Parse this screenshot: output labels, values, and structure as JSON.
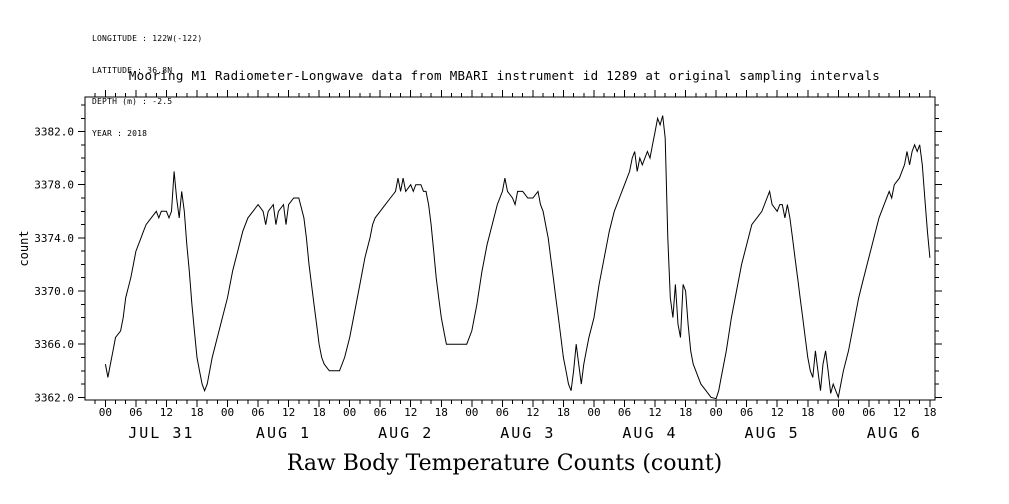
{
  "header": {
    "lines": [
      "LONGITUDE : 122W(-122)",
      "LATITUDE : 36.8N",
      "DEPTH (m) : -2.5",
      "YEAR : 2018"
    ]
  },
  "chart_data": {
    "type": "line",
    "title": "Mooring M1 Radiometer-Longwave data from MBARI instrument id 1289 at original sampling intervals",
    "xlabel": "Raw Body Temperature Counts (count)",
    "ylabel": "count",
    "line_color": "#000000",
    "ylim": [
      3361.8,
      3384.6
    ],
    "yticks": [
      3362.0,
      3366.0,
      3370.0,
      3374.0,
      3378.0,
      3382.0
    ],
    "y_minor_step": 1,
    "xlim_hours": [
      -4,
      163
    ],
    "x_major_step_hours": 6,
    "x_minor_step_hours": 2,
    "hour_tick_labels": [
      "00",
      "06",
      "12",
      "18"
    ],
    "day_labels": [
      "JUL 31",
      "AUG 1",
      "AUG 2",
      "AUG 3",
      "AUG 4",
      "AUG 5",
      "AUG 6"
    ],
    "points": [
      [
        0,
        3364.5
      ],
      [
        0.5,
        3363.5
      ],
      [
        1,
        3364.5
      ],
      [
        1.5,
        3365.5
      ],
      [
        2,
        3366.5
      ],
      [
        3,
        3367
      ],
      [
        3.5,
        3368
      ],
      [
        4,
        3369.5
      ],
      [
        5,
        3371
      ],
      [
        5.5,
        3372
      ],
      [
        6,
        3373
      ],
      [
        7,
        3374
      ],
      [
        7.5,
        3374.5
      ],
      [
        8,
        3375
      ],
      [
        9,
        3375.5
      ],
      [
        10,
        3376
      ],
      [
        10.5,
        3375.5
      ],
      [
        11,
        3376
      ],
      [
        12,
        3376
      ],
      [
        12.5,
        3375.5
      ],
      [
        13,
        3376
      ],
      [
        13.5,
        3379
      ],
      [
        14,
        3377
      ],
      [
        14.5,
        3375.5
      ],
      [
        15,
        3377.5
      ],
      [
        15.5,
        3376
      ],
      [
        16,
        3373.5
      ],
      [
        16.5,
        3371.5
      ],
      [
        17,
        3369
      ],
      [
        17.5,
        3367
      ],
      [
        18,
        3365
      ],
      [
        18.5,
        3364
      ],
      [
        19,
        3363
      ],
      [
        19.5,
        3362.5
      ],
      [
        20,
        3363
      ],
      [
        20.5,
        3364
      ],
      [
        21,
        3365
      ],
      [
        22,
        3366.5
      ],
      [
        23,
        3368
      ],
      [
        24,
        3369.5
      ],
      [
        25,
        3371.5
      ],
      [
        26,
        3373
      ],
      [
        27,
        3374.5
      ],
      [
        28,
        3375.5
      ],
      [
        29,
        3376
      ],
      [
        30,
        3376.5
      ],
      [
        31,
        3376
      ],
      [
        31.5,
        3375
      ],
      [
        32,
        3376
      ],
      [
        33,
        3376.5
      ],
      [
        33.5,
        3375
      ],
      [
        34,
        3376
      ],
      [
        35,
        3376.5
      ],
      [
        35.5,
        3375
      ],
      [
        36,
        3376.5
      ],
      [
        37,
        3377
      ],
      [
        38,
        3377
      ],
      [
        39,
        3375.5
      ],
      [
        39.5,
        3374
      ],
      [
        40,
        3372
      ],
      [
        40.5,
        3370.5
      ],
      [
        41,
        3369
      ],
      [
        41.5,
        3367.5
      ],
      [
        42,
        3366
      ],
      [
        42.5,
        3365
      ],
      [
        43,
        3364.5
      ],
      [
        44,
        3364
      ],
      [
        45,
        3364
      ],
      [
        46,
        3364
      ],
      [
        47,
        3365
      ],
      [
        48,
        3366.5
      ],
      [
        49,
        3368.5
      ],
      [
        50,
        3370.5
      ],
      [
        51,
        3372.5
      ],
      [
        52,
        3374
      ],
      [
        52.5,
        3375
      ],
      [
        53,
        3375.5
      ],
      [
        54,
        3376
      ],
      [
        55,
        3376.5
      ],
      [
        56,
        3377
      ],
      [
        57,
        3377.5
      ],
      [
        57.5,
        3378.5
      ],
      [
        58,
        3377.5
      ],
      [
        58.5,
        3378.5
      ],
      [
        59,
        3377.5
      ],
      [
        60,
        3378
      ],
      [
        60.5,
        3377.5
      ],
      [
        61,
        3378
      ],
      [
        62,
        3378
      ],
      [
        62.5,
        3377.5
      ],
      [
        63,
        3377.5
      ],
      [
        63.5,
        3376.5
      ],
      [
        64,
        3375
      ],
      [
        64.5,
        3373
      ],
      [
        65,
        3371
      ],
      [
        65.5,
        3369.5
      ],
      [
        66,
        3368
      ],
      [
        66.5,
        3367
      ],
      [
        67,
        3366
      ],
      [
        68,
        3366
      ],
      [
        69,
        3366
      ],
      [
        70,
        3366
      ],
      [
        71,
        3366
      ],
      [
        72,
        3367
      ],
      [
        73,
        3369
      ],
      [
        74,
        3371.5
      ],
      [
        75,
        3373.5
      ],
      [
        76,
        3375
      ],
      [
        77,
        3376.5
      ],
      [
        78,
        3377.5
      ],
      [
        78.5,
        3378.5
      ],
      [
        79,
        3377.5
      ],
      [
        80,
        3377
      ],
      [
        80.5,
        3376.5
      ],
      [
        81,
        3377.5
      ],
      [
        82,
        3377.5
      ],
      [
        83,
        3377
      ],
      [
        84,
        3377
      ],
      [
        85,
        3377.5
      ],
      [
        85.5,
        3376.5
      ],
      [
        86,
        3376
      ],
      [
        86.5,
        3375
      ],
      [
        87,
        3374
      ],
      [
        87.5,
        3372.5
      ],
      [
        88,
        3371
      ],
      [
        88.5,
        3369.5
      ],
      [
        89,
        3368
      ],
      [
        89.5,
        3366.5
      ],
      [
        90,
        3365
      ],
      [
        90.5,
        3364
      ],
      [
        91,
        3363
      ],
      [
        91.5,
        3362.5
      ],
      [
        92,
        3364
      ],
      [
        92.5,
        3366
      ],
      [
        93,
        3364.5
      ],
      [
        93.5,
        3363
      ],
      [
        94,
        3364.5
      ],
      [
        94.5,
        3365.5
      ],
      [
        95,
        3366.5
      ],
      [
        96,
        3368
      ],
      [
        97,
        3370.5
      ],
      [
        98,
        3372.5
      ],
      [
        99,
        3374.5
      ],
      [
        100,
        3376
      ],
      [
        101,
        3377
      ],
      [
        102,
        3378
      ],
      [
        103,
        3379
      ],
      [
        103.5,
        3380
      ],
      [
        104,
        3380.5
      ],
      [
        104.5,
        3379
      ],
      [
        105,
        3380
      ],
      [
        105.5,
        3379.5
      ],
      [
        106,
        3380
      ],
      [
        106.5,
        3380.5
      ],
      [
        107,
        3380
      ],
      [
        107.5,
        3381
      ],
      [
        108,
        3382
      ],
      [
        108.5,
        3383
      ],
      [
        109,
        3382.5
      ],
      [
        109.5,
        3383.2
      ],
      [
        110,
        3381.5
      ],
      [
        110.5,
        3374
      ],
      [
        111,
        3369.5
      ],
      [
        111.5,
        3368
      ],
      [
        112,
        3370.5
      ],
      [
        112.5,
        3367.5
      ],
      [
        113,
        3366.5
      ],
      [
        113.5,
        3370.5
      ],
      [
        114,
        3370
      ],
      [
        114.5,
        3367.5
      ],
      [
        115,
        3365.5
      ],
      [
        115.5,
        3364.5
      ],
      [
        116,
        3364
      ],
      [
        116.5,
        3363.5
      ],
      [
        117,
        3363
      ],
      [
        118,
        3362.5
      ],
      [
        119,
        3362
      ],
      [
        120,
        3361.9
      ],
      [
        120.5,
        3362.5
      ],
      [
        121,
        3363.5
      ],
      [
        122,
        3365.5
      ],
      [
        123,
        3368
      ],
      [
        124,
        3370
      ],
      [
        125,
        3372
      ],
      [
        126,
        3373.5
      ],
      [
        127,
        3375
      ],
      [
        128,
        3375.5
      ],
      [
        129,
        3376
      ],
      [
        130,
        3377
      ],
      [
        130.5,
        3377.5
      ],
      [
        131,
        3376.5
      ],
      [
        132,
        3376
      ],
      [
        132.5,
        3376.5
      ],
      [
        133,
        3376.5
      ],
      [
        133.5,
        3375.5
      ],
      [
        134,
        3376.5
      ],
      [
        134.5,
        3375.5
      ],
      [
        135,
        3374
      ],
      [
        135.5,
        3372.5
      ],
      [
        136,
        3371
      ],
      [
        136.5,
        3369.5
      ],
      [
        137,
        3368
      ],
      [
        137.5,
        3366.5
      ],
      [
        138,
        3365
      ],
      [
        138.5,
        3364
      ],
      [
        139,
        3363.5
      ],
      [
        139.5,
        3365.5
      ],
      [
        140,
        3364
      ],
      [
        140.5,
        3362.5
      ],
      [
        141,
        3364.5
      ],
      [
        141.5,
        3365.5
      ],
      [
        142,
        3364
      ],
      [
        142.5,
        3362.3
      ],
      [
        143,
        3363
      ],
      [
        144,
        3362
      ],
      [
        144.5,
        3363
      ],
      [
        145,
        3364
      ],
      [
        146,
        3365.5
      ],
      [
        147,
        3367.5
      ],
      [
        148,
        3369.5
      ],
      [
        149,
        3371
      ],
      [
        150,
        3372.5
      ],
      [
        151,
        3374
      ],
      [
        152,
        3375.5
      ],
      [
        153,
        3376.5
      ],
      [
        154,
        3377.5
      ],
      [
        154.5,
        3377
      ],
      [
        155,
        3378
      ],
      [
        156,
        3378.5
      ],
      [
        157,
        3379.5
      ],
      [
        157.5,
        3380.5
      ],
      [
        158,
        3379.5
      ],
      [
        158.5,
        3380.5
      ],
      [
        159,
        3381
      ],
      [
        159.5,
        3380.5
      ],
      [
        160,
        3381
      ],
      [
        160.5,
        3379.5
      ],
      [
        161,
        3377
      ],
      [
        161.5,
        3374.5
      ],
      [
        162,
        3372.5
      ]
    ]
  }
}
